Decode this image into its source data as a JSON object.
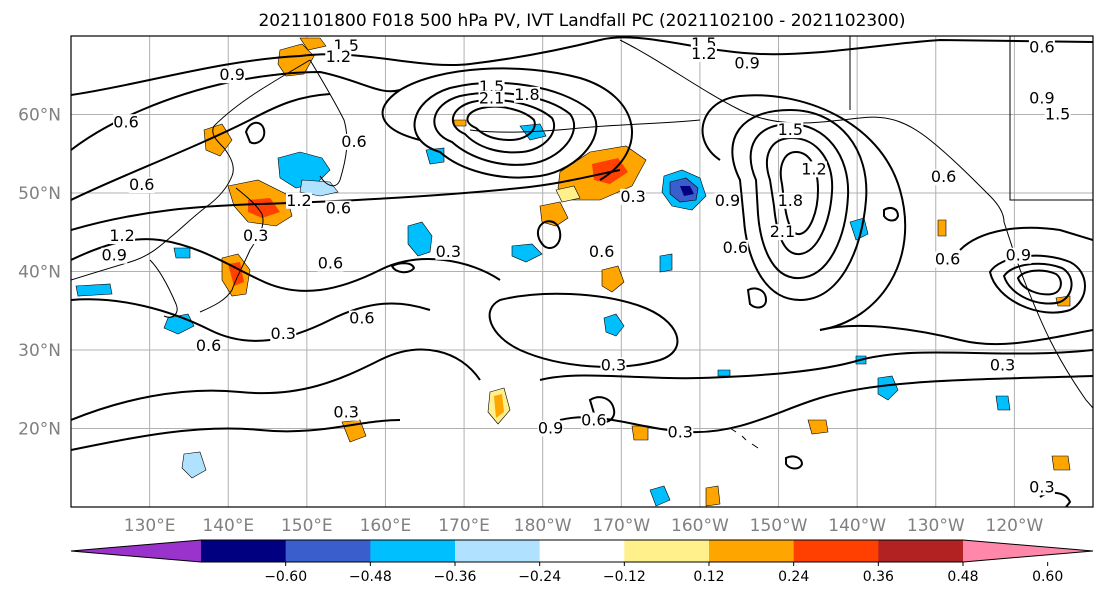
{
  "title": "2021101800 F018 500 hPa PV, IVT Landfall PC (2021102100 - 2021102300)",
  "map": {
    "lon_range": [
      120,
      250
    ],
    "lat_range": [
      10,
      70
    ],
    "lat_ticks": [
      {
        "value": 20,
        "label": "20°N"
      },
      {
        "value": 30,
        "label": "30°N"
      },
      {
        "value": 40,
        "label": "40°N"
      },
      {
        "value": 50,
        "label": "50°N"
      },
      {
        "value": 60,
        "label": "60°N"
      }
    ],
    "lon_ticks": [
      {
        "value": 130,
        "label": "130°E"
      },
      {
        "value": 140,
        "label": "140°E"
      },
      {
        "value": 150,
        "label": "150°E"
      },
      {
        "value": 160,
        "label": "160°E"
      },
      {
        "value": 170,
        "label": "170°E"
      },
      {
        "value": 180,
        "label": "180°W"
      },
      {
        "value": 190,
        "label": "170°W"
      },
      {
        "value": 200,
        "label": "160°W"
      },
      {
        "value": 210,
        "label": "150°W"
      },
      {
        "value": 220,
        "label": "140°W"
      },
      {
        "value": 230,
        "label": "130°W"
      },
      {
        "value": 240,
        "label": "120°W"
      }
    ],
    "contour_labels": [
      {
        "lon": 155,
        "lat": 68.2,
        "text": "1.5"
      },
      {
        "lon": 154,
        "lat": 66.8,
        "text": "1.2"
      },
      {
        "lon": 140.5,
        "lat": 64.5,
        "text": "0.9"
      },
      {
        "lon": 127,
        "lat": 58.5,
        "text": "0.6"
      },
      {
        "lon": 129,
        "lat": 50.5,
        "text": "0.6"
      },
      {
        "lon": 156,
        "lat": 56.0,
        "text": "0.6"
      },
      {
        "lon": 173.5,
        "lat": 63.0,
        "text": "1.5"
      },
      {
        "lon": 173.5,
        "lat": 61.5,
        "text": "2.1"
      },
      {
        "lon": 178.0,
        "lat": 62.0,
        "text": "1.8"
      },
      {
        "lon": 149,
        "lat": 48.5,
        "text": "1.2"
      },
      {
        "lon": 154,
        "lat": 47.5,
        "text": "0.6"
      },
      {
        "lon": 143.5,
        "lat": 44.0,
        "text": "0.3"
      },
      {
        "lon": 153,
        "lat": 40.5,
        "text": "0.6"
      },
      {
        "lon": 126.5,
        "lat": 44.0,
        "text": "1.2"
      },
      {
        "lon": 125.5,
        "lat": 41.5,
        "text": "0.9"
      },
      {
        "lon": 168,
        "lat": 42.0,
        "text": "0.3"
      },
      {
        "lon": 187.5,
        "lat": 42.0,
        "text": "0.6"
      },
      {
        "lon": 191.5,
        "lat": 49.0,
        "text": "0.3"
      },
      {
        "lon": 157,
        "lat": 33.5,
        "text": "0.6"
      },
      {
        "lon": 147,
        "lat": 31.5,
        "text": "0.3"
      },
      {
        "lon": 137.5,
        "lat": 30.0,
        "text": "0.6"
      },
      {
        "lon": 155,
        "lat": 21.5,
        "text": "0.3"
      },
      {
        "lon": 189,
        "lat": 27.5,
        "text": "0.3"
      },
      {
        "lon": 181,
        "lat": 19.5,
        "text": "0.9"
      },
      {
        "lon": 186.5,
        "lat": 20.5,
        "text": "0.6"
      },
      {
        "lon": 197.5,
        "lat": 19.0,
        "text": "0.3"
      },
      {
        "lon": 200.5,
        "lat": 68.5,
        "text": "1.5"
      },
      {
        "lon": 200.5,
        "lat": 67.2,
        "text": "1.2"
      },
      {
        "lon": 206.0,
        "lat": 66.0,
        "text": "0.9"
      },
      {
        "lon": 211.5,
        "lat": 57.5,
        "text": "1.5"
      },
      {
        "lon": 214.5,
        "lat": 52.5,
        "text": "1.2"
      },
      {
        "lon": 211.5,
        "lat": 48.5,
        "text": "1.8"
      },
      {
        "lon": 210.5,
        "lat": 44.5,
        "text": "2.1"
      },
      {
        "lon": 203.5,
        "lat": 48.5,
        "text": "0.9"
      },
      {
        "lon": 204.5,
        "lat": 42.5,
        "text": "0.6"
      },
      {
        "lon": 231.0,
        "lat": 51.5,
        "text": "0.6"
      },
      {
        "lon": 231.5,
        "lat": 41.0,
        "text": "0.6"
      },
      {
        "lon": 240.5,
        "lat": 41.5,
        "text": "0.9"
      },
      {
        "lon": 243.5,
        "lat": 68.0,
        "text": "0.6"
      },
      {
        "lon": 243.5,
        "lat": 61.5,
        "text": "0.9"
      },
      {
        "lon": 245.5,
        "lat": 59.5,
        "text": "1.5"
      },
      {
        "lon": 238.5,
        "lat": 27.5,
        "text": "0.3"
      },
      {
        "lon": 243.5,
        "lat": 12.0,
        "text": "0.3"
      }
    ]
  },
  "colorbar": {
    "colors": [
      "#9933cc",
      "#000080",
      "#3a5fcd",
      "#00bfff",
      "#b0e2ff",
      "#ffffff",
      "#fff08c",
      "#ffa500",
      "#ff4000",
      "#b22222",
      "#ff88aa"
    ],
    "tick_labels": [
      "−0.60",
      "−0.48",
      "−0.36",
      "−0.24",
      "−0.12",
      "0.12",
      "0.24",
      "0.36",
      "0.48",
      "0.60"
    ]
  }
}
